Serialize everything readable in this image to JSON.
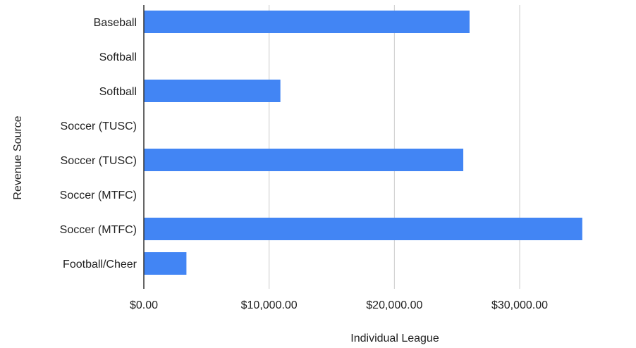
{
  "chart_data": {
    "type": "bar",
    "orientation": "horizontal",
    "categories": [
      "Baseball",
      "Softball",
      "Softball",
      "Soccer (TUSC)",
      "Soccer (TUSC)",
      "Soccer (MTFC)",
      "Soccer (MTFC)",
      "Football/Cheer"
    ],
    "values": [
      26000,
      null,
      10900,
      null,
      25500,
      null,
      35000,
      3400
    ],
    "xlabel": "Individual League",
    "ylabel": "Revenue Source",
    "xlim": [
      0,
      35000
    ],
    "x_ticks": [
      {
        "value": 0,
        "label": "$0.00"
      },
      {
        "value": 10000,
        "label": "$10,000.00"
      },
      {
        "value": 20000,
        "label": "$20,000.00"
      },
      {
        "value": 30000,
        "label": "$30,000.00"
      }
    ],
    "grid": true,
    "bar_color": "#4285f4",
    "grid_color": "#cccccc",
    "axis_color": "#333333",
    "text_color": "#222222"
  }
}
